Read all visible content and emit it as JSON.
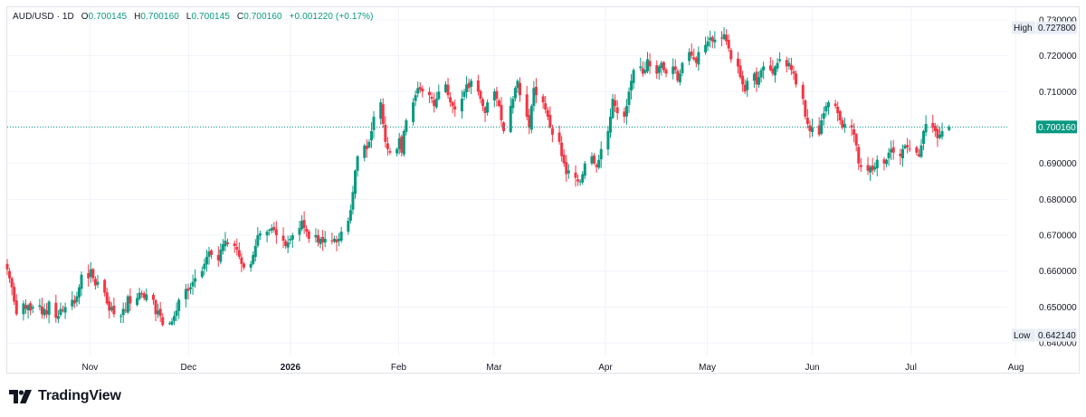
{
  "header": {
    "symbol": "AUD/USD · 1D",
    "open_label": "O",
    "open": "0.700145",
    "high_label": "H",
    "high": "0.700160",
    "low_label": "L",
    "low": "0.700145",
    "close_label": "C",
    "close": "0.700160",
    "change": "+0.001220 (+0.17%)"
  },
  "price_axis": {
    "ticks": [
      "0.730000",
      "0.720000",
      "0.710000",
      "0.700000",
      "0.690000",
      "0.680000",
      "0.670000",
      "0.660000",
      "0.650000",
      "0.640000"
    ],
    "high_label": "High",
    "high_value": "0.727800",
    "low_label": "Low",
    "low_value": "0.642140",
    "last_price": "0.700160"
  },
  "time_axis": {
    "ticks": [
      {
        "label": "Nov",
        "bold": false
      },
      {
        "label": "Dec",
        "bold": false
      },
      {
        "label": "2026",
        "bold": true
      },
      {
        "label": "Feb",
        "bold": false
      },
      {
        "label": "Mar",
        "bold": false
      },
      {
        "label": "Apr",
        "bold": false
      },
      {
        "label": "May",
        "bold": false
      },
      {
        "label": "Jun",
        "bold": false
      },
      {
        "label": "Jul",
        "bold": false
      },
      {
        "label": "Aug",
        "bold": false
      }
    ]
  },
  "brand": {
    "name": "TradingView"
  },
  "colors": {
    "up": "#089981",
    "down": "#f23645",
    "grid": "#f0f3fa",
    "last_price_line": "#089981",
    "axis_text": "#131722"
  },
  "chart_data": {
    "type": "candlestick",
    "title": "AUD/USD · 1D",
    "interval": "1D",
    "ylim": [
      0.6365,
      0.7335
    ],
    "grid": true,
    "x_tick_labels": [
      "Nov",
      "Dec",
      "2026",
      "Feb",
      "Mar",
      "Apr",
      "May",
      "Jun",
      "Jul",
      "Aug"
    ],
    "closes": [
      0.6605,
      0.658,
      0.6555,
      0.6515,
      0.648,
      0.651,
      0.6495,
      0.6505,
      0.649,
      0.65,
      0.6505,
      0.648,
      0.6495,
      0.648,
      0.6515,
      0.647,
      0.6475,
      0.6495,
      0.649,
      0.65,
      0.652,
      0.651,
      0.653,
      0.6555,
      0.659,
      0.658,
      0.6605,
      0.658,
      0.656,
      0.657,
      0.654,
      0.651,
      0.649,
      0.65,
      0.648,
      0.6475,
      0.6495,
      0.649,
      0.653,
      0.651,
      0.6525,
      0.654,
      0.6535,
      0.6525,
      0.6535,
      0.652,
      0.648,
      0.649,
      0.6475,
      0.645,
      0.6455,
      0.646,
      0.6475,
      0.649,
      0.652,
      0.655,
      0.6545,
      0.6555,
      0.657,
      0.658,
      0.66,
      0.662,
      0.664,
      0.6655,
      0.6645,
      0.663,
      0.666,
      0.6675,
      0.6685,
      0.6675,
      0.667,
      0.666,
      0.664,
      0.662,
      0.661,
      0.662,
      0.6645,
      0.667,
      0.67,
      0.6705,
      0.671,
      0.6715,
      0.672,
      0.6715,
      0.67,
      0.6685,
      0.667,
      0.668,
      0.669,
      0.67,
      0.672,
      0.674,
      0.672,
      0.671,
      0.669,
      0.67,
      0.668,
      0.669,
      0.668,
      0.669,
      0.6685,
      0.669,
      0.668,
      0.669,
      0.671,
      0.674,
      0.677,
      0.682,
      0.688,
      0.692,
      0.695,
      0.694,
      0.696,
      0.699,
      0.703,
      0.707,
      0.701,
      0.696,
      0.694,
      0.693,
      0.694,
      0.697,
      0.693,
      0.699,
      0.702,
      0.707,
      0.709,
      0.711,
      0.7105,
      0.71,
      0.709,
      0.708,
      0.706,
      0.708,
      0.71,
      0.712,
      0.709,
      0.707,
      0.706,
      0.705,
      0.708,
      0.71,
      0.712,
      0.711,
      0.713,
      0.71,
      0.708,
      0.706,
      0.704,
      0.707,
      0.71,
      0.708,
      0.706,
      0.702,
      0.699,
      0.706,
      0.708,
      0.711,
      0.713,
      0.709,
      0.703,
      0.7,
      0.706,
      0.711,
      0.709,
      0.707,
      0.705,
      0.703,
      0.7,
      0.698,
      0.696,
      0.692,
      0.69,
      0.687,
      0.688,
      0.686,
      0.685,
      0.685,
      0.687,
      0.69,
      0.692,
      0.69,
      0.689,
      0.691,
      0.694,
      0.699,
      0.703,
      0.708,
      0.706,
      0.704,
      0.703,
      0.706,
      0.71,
      0.713,
      0.716,
      0.717,
      0.715,
      0.716,
      0.719,
      0.717,
      0.715,
      0.717,
      0.718,
      0.716,
      0.715,
      0.717,
      0.716,
      0.713,
      0.715,
      0.718,
      0.721,
      0.72,
      0.719,
      0.718,
      0.721,
      0.723,
      0.724,
      0.725,
      0.724,
      0.7245,
      0.725,
      0.726,
      0.724,
      0.722,
      0.719,
      0.717,
      0.714,
      0.712,
      0.71,
      0.713,
      0.715,
      0.712,
      0.714,
      0.716,
      0.717,
      0.716,
      0.715,
      0.717,
      0.718,
      0.719,
      0.717,
      0.718,
      0.716,
      0.715,
      0.712,
      0.708,
      0.703,
      0.701,
      0.699,
      0.7,
      0.698,
      0.702,
      0.704,
      0.706,
      0.707,
      0.706,
      0.704,
      0.702,
      0.7,
      0.701,
      0.7,
      0.698,
      0.695,
      0.69,
      0.689,
      0.688,
      0.689,
      0.688,
      0.689,
      0.691,
      0.69,
      0.691,
      0.693,
      0.694,
      0.693,
      0.692,
      0.694,
      0.695,
      0.6945,
      0.694,
      0.693,
      0.692,
      0.695,
      0.699,
      0.701,
      0.7,
      0.699,
      0.697,
      0.698,
      0.699,
      0.7002
    ],
    "x_range_days": [
      0,
      317
    ],
    "ohlc_header": {
      "open": 0.700145,
      "high": 0.70016,
      "low": 0.700145,
      "close": 0.70016,
      "change": 0.00122,
      "change_pct": 0.17
    },
    "high": 0.7278,
    "low": 0.64214,
    "last": 0.70016
  }
}
